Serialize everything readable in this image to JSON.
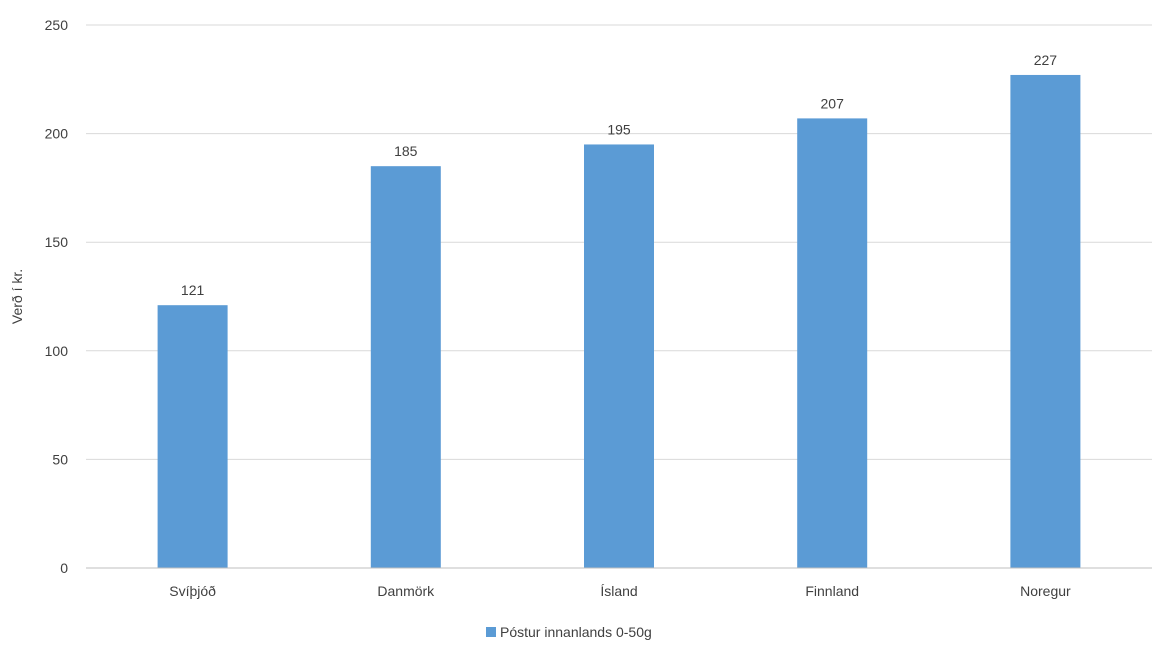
{
  "chart_data": {
    "type": "bar",
    "title": "",
    "xlabel": "",
    "ylabel": "Verð í kr.",
    "categories": [
      "Svíþjóð",
      "Danmörk",
      "Ísland",
      "Finnland",
      "Noregur"
    ],
    "series": [
      {
        "name": "Póstur innanlands 0-50g",
        "values": [
          121,
          185,
          195,
          207,
          227
        ],
        "color": "#5b9bd5"
      }
    ],
    "ylim": [
      0,
      250
    ],
    "yticks": [
      0,
      50,
      100,
      150,
      200,
      250
    ],
    "grid": true,
    "data_labels": true,
    "legend_position": "bottom"
  }
}
